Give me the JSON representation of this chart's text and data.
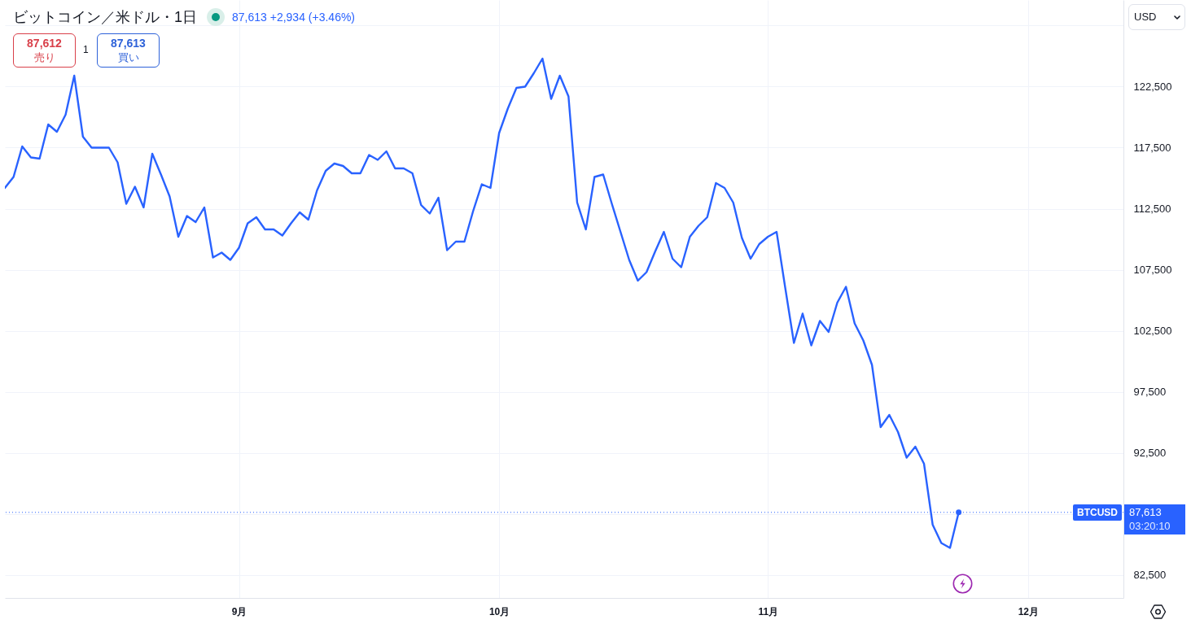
{
  "chart_data": {
    "type": "line",
    "title": "ビットコイン／米ドル・1日",
    "x": [
      "--08-05",
      "--08-06",
      "--08-07",
      "--08-08",
      "--08-09",
      "--08-10",
      "--08-11",
      "--08-12",
      "--08-13",
      "--08-14",
      "--08-15",
      "--08-16",
      "--08-17",
      "--08-18",
      "--08-19",
      "--08-20",
      "--08-21",
      "--08-22",
      "--08-23",
      "--08-24",
      "--08-25",
      "--08-26",
      "--08-27",
      "--08-28",
      "--08-29",
      "--08-30",
      "--08-31",
      "--09-01",
      "--09-02",
      "--09-03",
      "--09-04",
      "--09-05",
      "--09-06",
      "--09-07",
      "--09-08",
      "--09-09",
      "--09-10",
      "--09-11",
      "--09-12",
      "--09-13",
      "--09-14",
      "--09-15",
      "--09-16",
      "--09-17",
      "--09-18",
      "--09-19",
      "--09-20",
      "--09-21",
      "--09-22",
      "--09-23",
      "--09-24",
      "--09-25",
      "--09-26",
      "--09-27",
      "--09-28",
      "--09-29",
      "--09-30",
      "--10-01",
      "--10-02",
      "--10-03",
      "--10-04",
      "--10-05",
      "--10-06",
      "--10-07",
      "--10-08",
      "--10-09",
      "--10-10",
      "--10-11",
      "--10-12",
      "--10-13",
      "--10-14",
      "--10-15",
      "--10-16",
      "--10-17",
      "--10-18",
      "--10-19",
      "--10-20",
      "--10-21",
      "--10-22",
      "--10-23",
      "--10-24",
      "--10-25",
      "--10-26",
      "--10-27",
      "--10-28",
      "--10-29",
      "--10-30",
      "--10-31",
      "--11-01",
      "--11-02",
      "--11-03",
      "--11-04",
      "--11-05",
      "--11-06",
      "--11-07",
      "--11-08",
      "--11-09",
      "--11-10",
      "--11-11",
      "--11-12",
      "--11-13",
      "--11-14",
      "--11-15",
      "--11-16",
      "--11-17",
      "--11-18",
      "--11-19",
      "--11-20",
      "--11-21",
      "--11-22",
      "--11-23"
    ],
    "series": [
      {
        "color": "#2962ff",
        "values": [
          114200,
          115100,
          117600,
          116700,
          116600,
          119400,
          118800,
          120200,
          123400,
          118400,
          117500,
          117500,
          117500,
          116300,
          112900,
          114300,
          112600,
          117000,
          115300,
          113500,
          110200,
          111900,
          111400,
          112600,
          108500,
          108900,
          108300,
          109300,
          111300,
          111800,
          110800,
          110800,
          110300,
          111300,
          112200,
          111600,
          114000,
          115600,
          116200,
          116000,
          115400,
          115400,
          116900,
          116500,
          117200,
          115800,
          115800,
          115400,
          112800,
          112100,
          113400,
          109100,
          109800,
          109800,
          112300,
          114500,
          114200,
          118700,
          120700,
          122400,
          122500,
          123600,
          124800,
          121500,
          123400,
          121700,
          113000,
          110800,
          115100,
          115300,
          112900,
          110600,
          108300,
          106600,
          107300,
          109000,
          110600,
          108400,
          107700,
          110200,
          111100,
          111800,
          114600,
          114200,
          113000,
          110100,
          108400,
          109600,
          110200,
          110600,
          106000,
          101500,
          103900,
          101300,
          103300,
          102400,
          104800,
          106100,
          103100,
          101700,
          99700,
          94600,
          95600,
          94200,
          92100,
          93000,
          91600,
          86600,
          85100,
          84700,
          87613
        ]
      },
      {
        "type": "scatter",
        "color": "#2962ff",
        "x": [
          "--11-23"
        ],
        "values": [
          87613
        ]
      }
    ],
    "xlim": [
      "--08-05",
      "--12-12"
    ],
    "xticks": [
      {
        "value": "--09-01",
        "label": "9月"
      },
      {
        "value": "--10-01",
        "label": "10月"
      },
      {
        "value": "--11-01",
        "label": "11月"
      },
      {
        "value": "--12-01",
        "label": "12月"
      }
    ],
    "ylim": [
      80600,
      129600
    ],
    "yticks": [
      {
        "value": 82500,
        "label": "82,500"
      },
      {
        "value": 87500,
        "label": null
      },
      {
        "value": 92500,
        "label": "92,500"
      },
      {
        "value": 97500,
        "label": "97,500"
      },
      {
        "value": 102500,
        "label": "102,500"
      },
      {
        "value": 107500,
        "label": "107,500"
      },
      {
        "value": 112500,
        "label": "112,500"
      },
      {
        "value": 117500,
        "label": "117,500"
      },
      {
        "value": 122500,
        "label": "122,500"
      },
      {
        "value": 127500,
        "label": null
      }
    ],
    "grid": true,
    "ref_lines": [
      {
        "axis": "y",
        "value": 87613,
        "label": "BTCUSD",
        "color": "#2962ff",
        "line_style": "dotted"
      }
    ],
    "annotations": [
      "87,613 +2,934 (+3.46%)",
      "87,612",
      "売り",
      "1",
      "87,613",
      "買い",
      "USD",
      "03:20:10"
    ]
  }
}
